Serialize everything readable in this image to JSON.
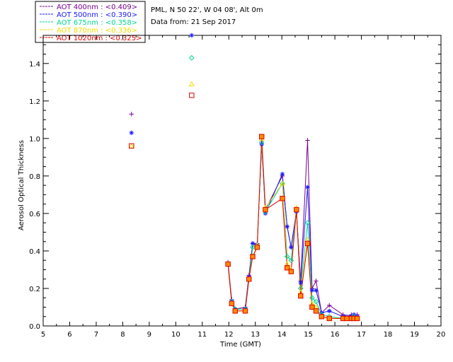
{
  "header": {
    "location": "PML, N 50 22', W 04 08', Alt 0m",
    "data_from": "Data from: 21 Sep 2017"
  },
  "chart_data": {
    "type": "line",
    "xlabel": "Time (GMT)",
    "ylabel": "Aerosol Optical Thickness",
    "xlim": [
      5,
      20
    ],
    "ylim": [
      0.0,
      1.55
    ],
    "xticks": [
      "5",
      "6",
      "7",
      "8",
      "9",
      "10",
      "11",
      "12",
      "13",
      "14",
      "15",
      "16",
      "17",
      "18",
      "19",
      "20"
    ],
    "yticks": [
      "0.0",
      "0.2",
      "0.4",
      "0.6",
      "0.8",
      "1.0",
      "1.2",
      "1.4"
    ],
    "legend_position": "top-left, outside plot",
    "x": [
      8.33,
      10.6,
      11.97,
      12.11,
      12.24,
      12.62,
      12.76,
      12.9,
      13.07,
      13.24,
      13.38,
      14.02,
      14.2,
      14.35,
      14.55,
      14.71,
      14.97,
      15.14,
      15.29,
      15.5,
      15.79,
      16.31,
      16.45,
      16.62,
      16.72,
      16.84
    ],
    "series": [
      {
        "name": "AOT  400nm",
        "mean_label": "<0.409>",
        "color": "#7a0090",
        "marker": "plus",
        "values": [
          1.13,
          null,
          0.34,
          0.14,
          0.09,
          0.1,
          0.27,
          0.44,
          0.44,
          0.97,
          0.62,
          0.8,
          0.53,
          0.42,
          0.61,
          0.24,
          0.99,
          0.2,
          0.24,
          0.07,
          0.11,
          0.06,
          0.05,
          0.06,
          0.06,
          0.06
        ]
      },
      {
        "name": "AOT  500nm",
        "mean_label": "<0.390>",
        "color": "#1a1aff",
        "marker": "star",
        "values": [
          1.03,
          1.55,
          0.33,
          0.13,
          0.09,
          0.09,
          0.26,
          0.44,
          0.43,
          0.97,
          0.6,
          0.81,
          0.53,
          0.42,
          0.61,
          0.23,
          0.74,
          0.19,
          0.19,
          0.07,
          0.08,
          0.05,
          0.05,
          0.05,
          0.06,
          0.05
        ]
      },
      {
        "name": "AOT  675nm",
        "mean_label": "<0.358>",
        "color": "#00d890",
        "marker": "diamond",
        "values": [
          null,
          1.43,
          0.33,
          0.13,
          0.09,
          0.09,
          0.25,
          0.42,
          0.43,
          0.98,
          0.61,
          0.76,
          0.37,
          0.35,
          0.62,
          0.2,
          0.55,
          0.15,
          0.13,
          0.06,
          0.05,
          0.04,
          0.04,
          0.04,
          0.05,
          0.04
        ]
      },
      {
        "name": "AOT  870nm",
        "mean_label": "<0.336>",
        "color": "#f0dc00",
        "marker": "triangle",
        "values": [
          0.96,
          1.29,
          0.33,
          0.12,
          0.08,
          0.08,
          0.25,
          0.37,
          0.43,
          1.0,
          0.63,
          0.76,
          0.33,
          0.3,
          0.63,
          0.18,
          0.46,
          0.12,
          0.1,
          0.05,
          0.04,
          0.04,
          0.04,
          0.04,
          0.04,
          0.04
        ]
      },
      {
        "name": "AOT 1020nm",
        "mean_label": "<0.325>",
        "color": "#e00000",
        "marker": "square",
        "values": [
          0.96,
          1.23,
          0.33,
          0.12,
          0.08,
          0.08,
          0.25,
          0.37,
          0.42,
          1.01,
          0.62,
          0.68,
          0.31,
          0.29,
          0.62,
          0.16,
          0.44,
          0.1,
          0.08,
          0.05,
          0.04,
          0.04,
          0.04,
          0.04,
          0.04,
          0.04
        ]
      }
    ],
    "marker_fills": [
      "#ff8c00"
    ]
  }
}
